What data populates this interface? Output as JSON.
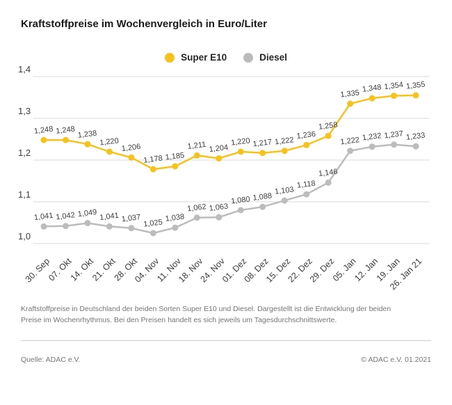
{
  "header": {
    "title": "Kraftstoffpreise im Wochenvergleich in Euro/Liter"
  },
  "legend": {
    "items": [
      {
        "label": "Super E10",
        "color": "#F5C21E"
      },
      {
        "label": "Diesel",
        "color": "#BCBCBC"
      }
    ]
  },
  "chart_data": {
    "type": "line",
    "title": "Kraftstoffpreise im Wochenvergleich in Euro/Liter",
    "x": [
      "30. Sep",
      "07. Okt",
      "14. Okt",
      "21. Okt",
      "28. Okt",
      "04. Nov",
      "11. Nov",
      "18. Nov",
      "24. Nov",
      "01. Dez",
      "08. Dez",
      "15. Dez",
      "22. Dez",
      "29. Dez",
      "05. Jan",
      "12. Jan",
      "19. Jan",
      "26. Jan 21"
    ],
    "series": [
      {
        "name": "Super E10",
        "color": "#F5C21E",
        "values": [
          1.248,
          1.248,
          1.238,
          1.22,
          1.206,
          1.178,
          1.185,
          1.211,
          1.204,
          1.22,
          1.217,
          1.222,
          1.236,
          1.258,
          1.335,
          1.348,
          1.354,
          1.355
        ]
      },
      {
        "name": "Diesel",
        "color": "#BCBCBC",
        "values": [
          1.041,
          1.042,
          1.049,
          1.041,
          1.037,
          1.025,
          1.038,
          1.062,
          1.063,
          1.08,
          1.088,
          1.103,
          1.118,
          1.146,
          1.222,
          1.232,
          1.237,
          1.233
        ]
      }
    ],
    "ylim": [
      1.0,
      1.4
    ],
    "yticks": [
      {
        "label": "1,0",
        "value": 1.0
      },
      {
        "label": "1,1",
        "value": 1.1
      },
      {
        "label": "1,2",
        "value": 1.2
      },
      {
        "label": "1,3",
        "value": 1.3
      },
      {
        "label": "1,4",
        "value": 1.4
      }
    ],
    "grid": true,
    "legend_position": "top-center",
    "value_labels": true,
    "decimal_separator": ","
  },
  "footer": {
    "description": "Kraftstoffpreise in Deutschland der beiden Sorten Super E10 und Diesel. Dargestellt ist die Entwicklung der beiden Preise im Wochenrhythmus. Bei den Preisen handelt es sich jeweils um Tagesdurchschnittswerte.",
    "source": "Quelle: ADAC e.V.",
    "copyright": "© ADAC e.V. 01.2021"
  },
  "colors": {
    "super_e10": "#F5C21E",
    "diesel": "#BCBCBC",
    "gridline": "#DBDBDB",
    "axis_text": "#3C3C3C",
    "muted_text": "#757575"
  }
}
